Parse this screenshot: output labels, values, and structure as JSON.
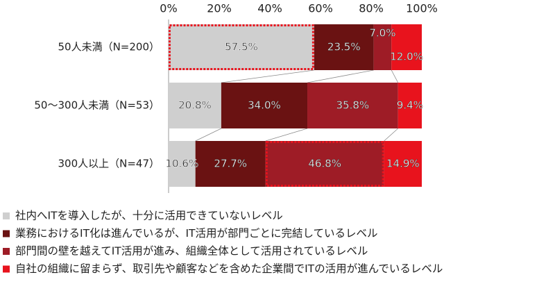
{
  "chart_data": {
    "type": "stacked-barh",
    "categories": [
      "50人未満（N=200）",
      "50～300人未満（N=53）",
      "300人以上（N=47）"
    ],
    "series": [
      {
        "name": "社内へITを導入したが、十分に活用できていないレベル",
        "color": "#cfcfcf",
        "values": [
          57.5,
          20.8,
          10.6
        ],
        "value_labels": [
          "57.5%",
          "20.8%",
          "10.6%"
        ]
      },
      {
        "name": "業務におけるIT化は進んでいるが、IT活用が部門ごとに完結しているレベル",
        "color": "#6a1212",
        "values": [
          23.5,
          34.0,
          27.7
        ],
        "value_labels": [
          "23.5%",
          "34.0%",
          "27.7%"
        ]
      },
      {
        "name": "部門間の壁を越えてIT活用が進み、組織全体として活用されているレベル",
        "color": "#9e1c26",
        "values": [
          7.0,
          35.8,
          46.8
        ],
        "value_labels": [
          "7.0%",
          "35.8%",
          "46.8%"
        ]
      },
      {
        "name": "自社の組織に留まらず、取引先や顧客などを含めた企業間でITの活用が進んでいるレベル",
        "color": "#e8131d",
        "values": [
          12.0,
          9.4,
          14.9
        ],
        "value_labels": [
          "12.0%",
          "9.4%",
          "14.9%"
        ]
      }
    ],
    "xlim": [
      0,
      100
    ],
    "xticks": [
      {
        "value": 0,
        "label": "0%"
      },
      {
        "value": 20,
        "label": "20%"
      },
      {
        "value": 40,
        "label": "40%"
      },
      {
        "value": 60,
        "label": "60%"
      },
      {
        "value": 80,
        "label": "80%"
      },
      {
        "value": 100,
        "label": "100%"
      }
    ],
    "highlights": [
      {
        "row": 0,
        "series": 0
      },
      {
        "row": 2,
        "series": 2
      }
    ]
  }
}
